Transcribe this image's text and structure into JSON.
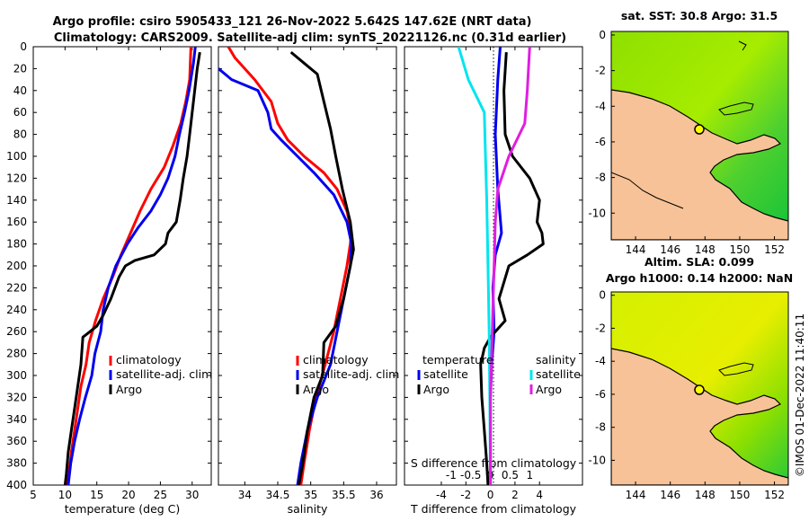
{
  "chart_data": {
    "type": "line",
    "title_line1": "Argo profile: csiro 5905433_121 26-Nov-2022 5.642S 147.62E (NRT data)",
    "title_line2": "Climatology: CARS2009. Satellite-adj clim: synTS_20221126.nc (0.31d earlier)",
    "depth_axis": {
      "range": [
        0,
        400
      ],
      "ticks": [
        0,
        20,
        40,
        60,
        80,
        100,
        120,
        140,
        160,
        180,
        200,
        220,
        240,
        260,
        280,
        300,
        320,
        340,
        360,
        380,
        400
      ]
    },
    "temperature_panel": {
      "xlabel": "temperature (deg C)",
      "xlim": [
        5,
        33
      ],
      "xticks": [
        5,
        10,
        15,
        20,
        25,
        30
      ],
      "legend": [
        "climatology",
        "satellite-adj. clim",
        "Argo"
      ],
      "series": [
        {
          "name": "climatology",
          "color": "#ff0000",
          "points": [
            [
              29.8,
              0
            ],
            [
              29.6,
              30
            ],
            [
              29,
              50
            ],
            [
              28.2,
              70
            ],
            [
              27,
              90
            ],
            [
              25.6,
              110
            ],
            [
              23.5,
              130
            ],
            [
              21.8,
              150
            ],
            [
              20.3,
              170
            ],
            [
              18.8,
              190
            ],
            [
              17.5,
              210
            ],
            [
              16,
              230
            ],
            [
              14.8,
              250
            ],
            [
              13.8,
              270
            ],
            [
              13.3,
              290
            ],
            [
              12.5,
              310
            ],
            [
              12,
              330
            ],
            [
              11.5,
              350
            ],
            [
              11,
              370
            ],
            [
              10.6,
              390
            ],
            [
              10.4,
              400
            ]
          ]
        },
        {
          "name": "satellite-adj. clim",
          "color": "#0000ee",
          "points": [
            [
              30.5,
              0
            ],
            [
              30.2,
              15
            ],
            [
              29.5,
              40
            ],
            [
              28.8,
              60
            ],
            [
              28,
              80
            ],
            [
              27.3,
              100
            ],
            [
              26.2,
              120
            ],
            [
              25,
              135
            ],
            [
              23.5,
              150
            ],
            [
              21.5,
              165
            ],
            [
              19.8,
              180
            ],
            [
              18,
              200
            ],
            [
              16.8,
              220
            ],
            [
              16,
              240
            ],
            [
              15.6,
              260
            ],
            [
              14.7,
              280
            ],
            [
              14.2,
              300
            ],
            [
              13.2,
              320
            ],
            [
              12.3,
              340
            ],
            [
              11.5,
              360
            ],
            [
              10.9,
              380
            ],
            [
              10.5,
              400
            ]
          ]
        },
        {
          "name": "Argo",
          "color": "#000000",
          "points": [
            [
              31.2,
              5
            ],
            [
              30.8,
              20
            ],
            [
              30.4,
              40
            ],
            [
              30,
              60
            ],
            [
              29.6,
              80
            ],
            [
              29.2,
              100
            ],
            [
              28.6,
              120
            ],
            [
              28.1,
              140
            ],
            [
              27.5,
              160
            ],
            [
              26.2,
              170
            ],
            [
              25.8,
              180
            ],
            [
              24,
              190
            ],
            [
              21,
              195
            ],
            [
              19.5,
              200
            ],
            [
              18.5,
              210
            ],
            [
              17.2,
              230
            ],
            [
              16,
              245
            ],
            [
              15,
              255
            ],
            [
              13.5,
              262
            ],
            [
              12.8,
              265
            ],
            [
              12.5,
              290
            ],
            [
              12,
              310
            ],
            [
              11.5,
              330
            ],
            [
              11,
              350
            ],
            [
              10.5,
              370
            ],
            [
              10.2,
              390
            ],
            [
              10,
              400
            ]
          ]
        }
      ]
    },
    "salinity_panel": {
      "xlabel": "salinity",
      "xlim": [
        33.6,
        36.3
      ],
      "xticks": [
        34,
        34.5,
        35,
        35.5,
        36
      ],
      "xtick_labels": [
        "34",
        "34.5",
        "35",
        "35.5",
        "36"
      ],
      "legend": [
        "climatology",
        "satellite-adj. clim",
        "Argo"
      ],
      "series": [
        {
          "name": "climatology",
          "color": "#ff0000",
          "points": [
            [
              33.75,
              0
            ],
            [
              33.85,
              10
            ],
            [
              34.15,
              30
            ],
            [
              34.4,
              50
            ],
            [
              34.5,
              70
            ],
            [
              34.65,
              85
            ],
            [
              34.9,
              100
            ],
            [
              35.2,
              115
            ],
            [
              35.4,
              130
            ],
            [
              35.55,
              150
            ],
            [
              35.62,
              170
            ],
            [
              35.6,
              180
            ],
            [
              35.55,
              200
            ],
            [
              35.45,
              230
            ],
            [
              35.35,
              260
            ],
            [
              35.22,
              290
            ],
            [
              35.08,
              320
            ],
            [
              34.98,
              350
            ],
            [
              34.9,
              380
            ],
            [
              34.85,
              400
            ]
          ]
        },
        {
          "name": "satellite-adj. clim",
          "color": "#0000ee",
          "points": [
            [
              33.6,
              20
            ],
            [
              33.8,
              30
            ],
            [
              34.2,
              40
            ],
            [
              34.35,
              60
            ],
            [
              34.4,
              75
            ],
            [
              34.55,
              85
            ],
            [
              34.8,
              100
            ],
            [
              35.05,
              115
            ],
            [
              35.35,
              135
            ],
            [
              35.55,
              160
            ],
            [
              35.62,
              180
            ],
            [
              35.6,
              200
            ],
            [
              35.5,
              230
            ],
            [
              35.4,
              260
            ],
            [
              35.3,
              290
            ],
            [
              35.1,
              320
            ],
            [
              34.95,
              350
            ],
            [
              34.85,
              380
            ],
            [
              34.8,
              400
            ]
          ]
        },
        {
          "name": "Argo",
          "color": "#000000",
          "points": [
            [
              34.7,
              5
            ],
            [
              34.9,
              15
            ],
            [
              35.1,
              25
            ],
            [
              35.2,
              50
            ],
            [
              35.3,
              75
            ],
            [
              35.38,
              100
            ],
            [
              35.48,
              130
            ],
            [
              35.6,
              160
            ],
            [
              35.65,
              185
            ],
            [
              35.6,
              200
            ],
            [
              35.5,
              230
            ],
            [
              35.38,
              255
            ],
            [
              35.2,
              270
            ],
            [
              35.18,
              300
            ],
            [
              35.05,
              320
            ],
            [
              34.95,
              350
            ],
            [
              34.88,
              380
            ],
            [
              34.82,
              400
            ]
          ]
        }
      ]
    },
    "difference_panel": {
      "xlabel": "T difference from climatology",
      "xlim": [
        -7,
        7.5
      ],
      "xticks": [
        -4,
        -2,
        0,
        2,
        4
      ],
      "top_axis_label": "S difference from climatology",
      "top_ticks": [
        -1,
        -0.5,
        0,
        0.5,
        1
      ],
      "top_tick_labels": [
        "-1",
        "-0.5",
        "0",
        "0.5",
        "1"
      ],
      "legend_temperature_title": "temperature",
      "legend_salinity_title": "salinity",
      "legend_temperature": [
        "satellite",
        "Argo"
      ],
      "legend_salinity": [
        "satellite",
        "Argo"
      ],
      "series": [
        {
          "name": "T satellite",
          "color": "#0000ee",
          "points": [
            [
              0.8,
              0
            ],
            [
              0.6,
              30
            ],
            [
              0.4,
              80
            ],
            [
              0.6,
              130
            ],
            [
              0.9,
              170
            ],
            [
              0.4,
              190
            ],
            [
              0.2,
              220
            ],
            [
              0.3,
              260
            ],
            [
              0.1,
              290
            ],
            [
              0,
              320
            ],
            [
              0,
              400
            ]
          ]
        },
        {
          "name": "T Argo",
          "color": "#000000",
          "points": [
            [
              1.3,
              5
            ],
            [
              1.1,
              40
            ],
            [
              1.2,
              80
            ],
            [
              1.8,
              100
            ],
            [
              3.2,
              120
            ],
            [
              4,
              140
            ],
            [
              3.8,
              160
            ],
            [
              4.2,
              170
            ],
            [
              4.3,
              180
            ],
            [
              3,
              190
            ],
            [
              1.5,
              200
            ],
            [
              0.7,
              230
            ],
            [
              1.2,
              250
            ],
            [
              0,
              265
            ],
            [
              -0.5,
              275
            ],
            [
              -0.8,
              290
            ],
            [
              -0.7,
              320
            ],
            [
              -0.5,
              350
            ],
            [
              -0.3,
              380
            ],
            [
              -0.2,
              400
            ]
          ]
        },
        {
          "name": "S satellite",
          "color": "#00e5ee",
          "points": [
            [
              -2.6,
              0
            ],
            [
              -1.8,
              30
            ],
            [
              -0.5,
              60
            ],
            [
              -0.4,
              100
            ],
            [
              -0.3,
              140
            ],
            [
              -0.2,
              200
            ],
            [
              -0.1,
              260
            ],
            [
              -0.05,
              320
            ],
            [
              0,
              400
            ]
          ]
        },
        {
          "name": "S Argo",
          "color": "#e01ee0",
          "points": [
            [
              3.2,
              0
            ],
            [
              3,
              40
            ],
            [
              2.8,
              70
            ],
            [
              1.5,
              100
            ],
            [
              0.6,
              130
            ],
            [
              0.4,
              160
            ],
            [
              0.3,
              200
            ],
            [
              0.2,
              240
            ],
            [
              0.1,
              280
            ],
            [
              0,
              320
            ],
            [
              0,
              400
            ]
          ]
        }
      ]
    },
    "map_top": {
      "title": "sat. SST: 30.8 Argo: 31.5",
      "xticks": [
        144,
        146,
        148,
        150,
        152
      ],
      "yticks": [
        0,
        -2,
        -4,
        -6,
        -8,
        -10
      ],
      "xlim": [
        142.6,
        152.8
      ],
      "ylim": [
        -11.5,
        0.2
      ]
    },
    "map_bottom": {
      "title_line1": "Altim. SLA: 0.099",
      "title_line2": "Argo h1000: 0.14 h2000: NaN",
      "xticks": [
        144,
        146,
        148,
        150,
        152
      ],
      "yticks": [
        0,
        -2,
        -4,
        -6,
        -8,
        -10
      ],
      "xlim": [
        142.6,
        152.8
      ],
      "ylim": [
        -11.5,
        0.2
      ]
    },
    "float_position": {
      "lon": 147.62,
      "lat": -5.642
    }
  },
  "stamp": "©IMOS 01-Dec-2022 11:40:11",
  "colors": {
    "land": "#f7c297",
    "sea_green": "#2ecc40",
    "sea_yellow": "#ccf000"
  }
}
